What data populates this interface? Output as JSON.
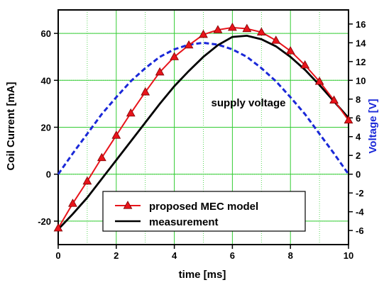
{
  "chart_data": {
    "type": "line",
    "title": "",
    "xlabel": "time [ms]",
    "ylabel_left": "Coil Current [mA]",
    "ylabel_right": "Voltage [V]",
    "xlim": [
      0,
      10
    ],
    "ylim_left": [
      -30,
      70
    ],
    "ylim_right": [
      -7.5,
      17.5
    ],
    "x_ticks": [
      "0",
      "2",
      "4",
      "6",
      "8",
      "10"
    ],
    "y_left_ticks": [
      "-20",
      "0",
      "20",
      "40",
      "60"
    ],
    "y_right_ticks": [
      "-6",
      "-4",
      "-2",
      "0",
      "2",
      "4",
      "6",
      "8",
      "10",
      "12",
      "14",
      "16"
    ],
    "grid": true,
    "legend_position": "bottom-center",
    "annotation": "supply voltage",
    "colors": {
      "model": "#e8141b",
      "measurement": "#000000",
      "voltage": "#1a28d8",
      "grid": "#33cc33",
      "right_axis_label": "#1a28d8"
    },
    "series": [
      {
        "name": "proposed MEC model",
        "axis": "left",
        "marker": "triangle",
        "x": [
          0,
          0.5,
          1,
          1.5,
          2,
          2.5,
          3,
          3.5,
          4,
          4.5,
          5,
          5.5,
          6,
          6.5,
          7,
          7.5,
          8,
          8.5,
          9,
          9.5,
          10
        ],
        "y": [
          -23,
          -12.5,
          -3,
          7,
          16.5,
          26,
          35,
          43.5,
          50,
          55,
          59.5,
          61.5,
          62.5,
          62,
          60.5,
          57,
          52.5,
          46.5,
          39.5,
          31.5,
          23
        ]
      },
      {
        "name": "measurement",
        "axis": "left",
        "x": [
          0,
          0.5,
          1,
          1.5,
          2,
          2.5,
          3,
          3.5,
          4,
          4.5,
          5,
          5.5,
          6,
          6.5,
          7,
          7.5,
          8,
          8.5,
          9,
          9.5,
          10
        ],
        "y": [
          -23.5,
          -17,
          -10,
          -2,
          6,
          14,
          22,
          30,
          37.5,
          44,
          50,
          55,
          58.5,
          59,
          57.5,
          54.5,
          50,
          44.5,
          38,
          31,
          24
        ]
      },
      {
        "axis": "right",
        "style": "dashed",
        "x": [
          0,
          0.5,
          1,
          1.5,
          2,
          2.5,
          3,
          3.5,
          4,
          4.5,
          5,
          5.5,
          6,
          6.5,
          7,
          7.5,
          8,
          8.5,
          9,
          9.5,
          10
        ],
        "y": [
          0,
          2.2,
          4.3,
          6.4,
          8.2,
          9.9,
          11.3,
          12.5,
          13.3,
          13.8,
          14,
          13.8,
          13.3,
          12.5,
          11.3,
          9.9,
          8.2,
          6.4,
          4.3,
          2.2,
          0
        ]
      }
    ]
  }
}
